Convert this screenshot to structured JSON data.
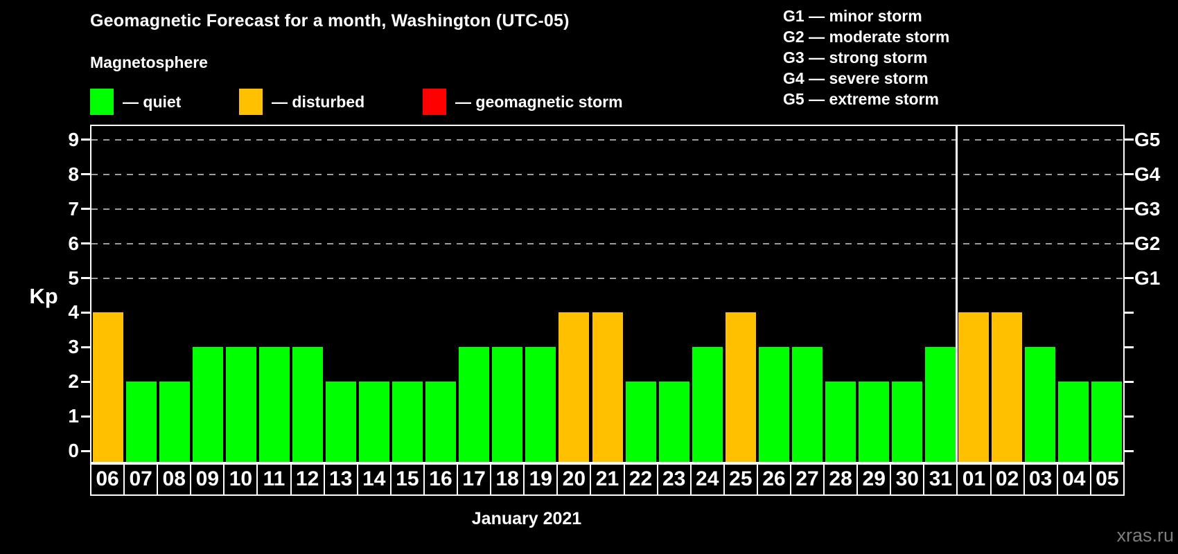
{
  "title": "Geomagnetic Forecast for a month, Washington (UTC-05)",
  "subtitle": "Magnetosphere",
  "legend": {
    "items": [
      {
        "key": "quiet",
        "label": "— quiet",
        "color": "#00ff00"
      },
      {
        "key": "disturbed",
        "label": "— disturbed",
        "color": "#ffc000"
      },
      {
        "key": "storm",
        "label": "— geomagnetic storm",
        "color": "#ff0000"
      }
    ]
  },
  "storm_scale_legend": [
    "G1 — minor storm",
    "G2 — moderate storm",
    "G3 — strong storm",
    "G4 — severe storm",
    "G5 — extreme storm"
  ],
  "axes": {
    "left_label": "Kp",
    "left_ticks": [
      0,
      1,
      2,
      3,
      4,
      5,
      6,
      7,
      8,
      9
    ],
    "right_labels": [
      {
        "kp": 9,
        "label": "G5"
      },
      {
        "kp": 8,
        "label": "G4"
      },
      {
        "kp": 7,
        "label": "G3"
      },
      {
        "kp": 6,
        "label": "G2"
      },
      {
        "kp": 5,
        "label": "G1"
      }
    ],
    "x_label": "January 2021"
  },
  "watermark": "xras.ru",
  "chart_data": {
    "type": "bar",
    "title": "Geomagnetic Forecast for a month, Washington (UTC-05)",
    "ylabel": "Kp",
    "ylim": [
      0,
      9
    ],
    "grid": "dashed horizontal at Kp 5-9",
    "categories": [
      "06",
      "07",
      "08",
      "09",
      "10",
      "11",
      "12",
      "13",
      "14",
      "15",
      "16",
      "17",
      "18",
      "19",
      "20",
      "21",
      "22",
      "23",
      "24",
      "25",
      "26",
      "27",
      "28",
      "29",
      "30",
      "31",
      "01",
      "02",
      "03",
      "04",
      "05"
    ],
    "values": [
      4,
      2,
      2,
      3,
      3,
      3,
      3,
      2,
      2,
      2,
      2,
      3,
      3,
      3,
      4,
      4,
      2,
      2,
      3,
      4,
      3,
      3,
      2,
      2,
      2,
      3,
      4,
      4,
      3,
      2,
      2
    ],
    "status": [
      "disturbed",
      "quiet",
      "quiet",
      "quiet",
      "quiet",
      "quiet",
      "quiet",
      "quiet",
      "quiet",
      "quiet",
      "quiet",
      "quiet",
      "quiet",
      "quiet",
      "disturbed",
      "disturbed",
      "quiet",
      "quiet",
      "quiet",
      "disturbed",
      "quiet",
      "quiet",
      "quiet",
      "quiet",
      "quiet",
      "quiet",
      "disturbed",
      "disturbed",
      "quiet",
      "quiet",
      "quiet"
    ],
    "colors": {
      "quiet": "#00ff00",
      "disturbed": "#ffc000",
      "storm": "#ff0000"
    },
    "gridlines_kp": [
      5,
      6,
      7,
      8,
      9
    ],
    "month_boundary_after_index": 25
  }
}
